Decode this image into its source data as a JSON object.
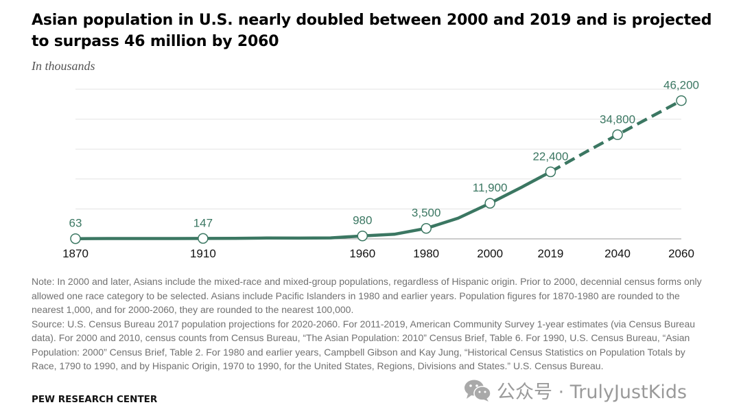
{
  "header": {
    "title": "Asian population in U.S. nearly doubled between 2000 and 2019 and is projected to surpass 46 million by 2060",
    "subtitle": "In thousands"
  },
  "chart_data": {
    "type": "line",
    "unit": "thousands",
    "x_ticks": [
      "1870",
      "1910",
      "1960",
      "1980",
      "2000",
      "2019",
      "2040",
      "2060"
    ],
    "xlim": [
      1870,
      2060
    ],
    "ylim": [
      0,
      50000
    ],
    "grid": true,
    "labeled_points": [
      {
        "x": 1870,
        "y": 63,
        "label": "63"
      },
      {
        "x": 1910,
        "y": 147,
        "label": "147"
      },
      {
        "x": 1960,
        "y": 980,
        "label": "980"
      },
      {
        "x": 1980,
        "y": 3500,
        "label": "3,500"
      },
      {
        "x": 2000,
        "y": 11900,
        "label": "11,900"
      },
      {
        "x": 2019,
        "y": 22400,
        "label": "22,400"
      },
      {
        "x": 2040,
        "y": 34800,
        "label": "34,800"
      },
      {
        "x": 2060,
        "y": 46200,
        "label": "46,200"
      }
    ],
    "series_actual": [
      [
        1870,
        63
      ],
      [
        1880,
        106
      ],
      [
        1890,
        110
      ],
      [
        1900,
        119
      ],
      [
        1910,
        147
      ],
      [
        1920,
        182
      ],
      [
        1930,
        265
      ],
      [
        1940,
        255
      ],
      [
        1950,
        321
      ],
      [
        1960,
        980
      ],
      [
        1970,
        1540
      ],
      [
        1980,
        3500
      ],
      [
        1990,
        6900
      ],
      [
        2000,
        11900
      ],
      [
        2010,
        17300
      ],
      [
        2019,
        22400
      ]
    ],
    "series_projected": [
      [
        2019,
        22400
      ],
      [
        2030,
        29000
      ],
      [
        2040,
        34800
      ],
      [
        2050,
        40500
      ],
      [
        2060,
        46200
      ]
    ],
    "line_color": "#3b7762",
    "grid_color": "#e3e3e3"
  },
  "notes": {
    "note": "Note: In 2000 and later, Asians include the mixed-race and mixed-group populations, regardless of Hispanic origin. Prior to 2000, decennial census forms only allowed one race category to be selected. Asians include Pacific Islanders in 1980 and earlier years. Population figures for 1870-1980 are rounded to the nearest 1,000, and for 2000-2060, they are rounded to the nearest 100,000.",
    "source": "Source: U.S. Census Bureau 2017 population projections for 2020-2060. For 2011-2019, American Community Survey 1-year estimates (via Census Bureau data). For 2000 and 2010, census counts from Census Bureau, “The Asian Population: 2010” Census Brief, Table 6. For 1990, U.S. Census Bureau, “Asian Population: 2000” Census Brief, Table 2. For 1980 and earlier years, Campbell Gibson and Kay Jung, “Historical Census Statistics on Population Totals by Race, 1790 to 1990, and by Hispanic Origin, 1970 to 1990, for the United States, Regions, Divisions and States.” U.S. Census Bureau."
  },
  "footer": {
    "org": "PEW RESEARCH CENTER"
  },
  "watermark": {
    "text": "公众号 · TrulyJustKids",
    "icon": "wechat-icon"
  }
}
